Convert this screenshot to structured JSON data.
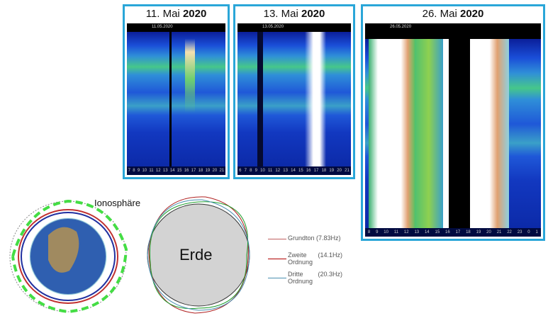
{
  "panels": [
    {
      "title_day": "11. Mai",
      "title_year": "2020",
      "date": "11.05.2020",
      "ticks": [
        "7",
        "8",
        "9",
        "10",
        "11",
        "12",
        "13",
        "14",
        "15",
        "16",
        "17",
        "18",
        "19",
        "20",
        "21"
      ]
    },
    {
      "title_day": "13. Mai",
      "title_year": "2020",
      "date": "13.05.2020",
      "ticks": [
        "6",
        "7",
        "8",
        "9",
        "10",
        "11",
        "12",
        "13",
        "14",
        "15",
        "16",
        "17",
        "18",
        "19",
        "20",
        "21"
      ]
    },
    {
      "title_day": "26. Mai",
      "title_year": "2020",
      "date": "26.05.2020",
      "ticks": [
        "8",
        "9",
        "10",
        "11",
        "12",
        "13",
        "14",
        "15",
        "16",
        "17",
        "18",
        "19",
        "20",
        "21",
        "22",
        "23",
        "0",
        "1"
      ]
    }
  ],
  "globe": {
    "label": "Ionosphäre"
  },
  "earth": {
    "label": "Erde"
  },
  "legend": [
    {
      "label": "Grundton",
      "value": "(7.83Hz)",
      "color": "#c06060"
    },
    {
      "label": "Zweite Ordnung",
      "value": "(14.1Hz)",
      "color": "#b00000"
    },
    {
      "label": "Dritte Ordnung",
      "value": "(20.3Hz)",
      "color": "#4a8fb0"
    }
  ]
}
